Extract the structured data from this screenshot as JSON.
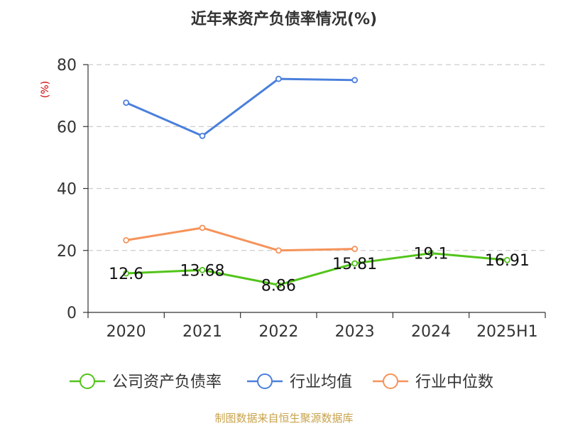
{
  "chart_data": {
    "type": "line",
    "title": "近年来资产负债率情况(%)",
    "ylabel": "(%)",
    "categories": [
      "2020",
      "2021",
      "2022",
      "2023",
      "2024",
      "2025H1"
    ],
    "yticks": [
      "0",
      "20",
      "40",
      "60",
      "80"
    ],
    "ylim": [
      0,
      80
    ],
    "grid": true,
    "legend_position": "bottom",
    "series": [
      {
        "name": "公司资产负债率",
        "color": "#52c41a",
        "values": [
          12.6,
          13.68,
          8.86,
          15.81,
          19.1,
          16.91
        ],
        "labels": [
          "12.6",
          "13.68",
          "8.86",
          "15.81",
          "19.1",
          "16.91"
        ]
      },
      {
        "name": "行业均值",
        "color": "#4a7fdc",
        "values": [
          67.7,
          57.0,
          75.4,
          75.0,
          null,
          null
        ]
      },
      {
        "name": "行业中位数",
        "color": "#f5935a",
        "values": [
          23.3,
          27.3,
          20.0,
          20.5,
          null,
          null
        ]
      }
    ]
  },
  "source": "制图数据来自恒生聚源数据库"
}
